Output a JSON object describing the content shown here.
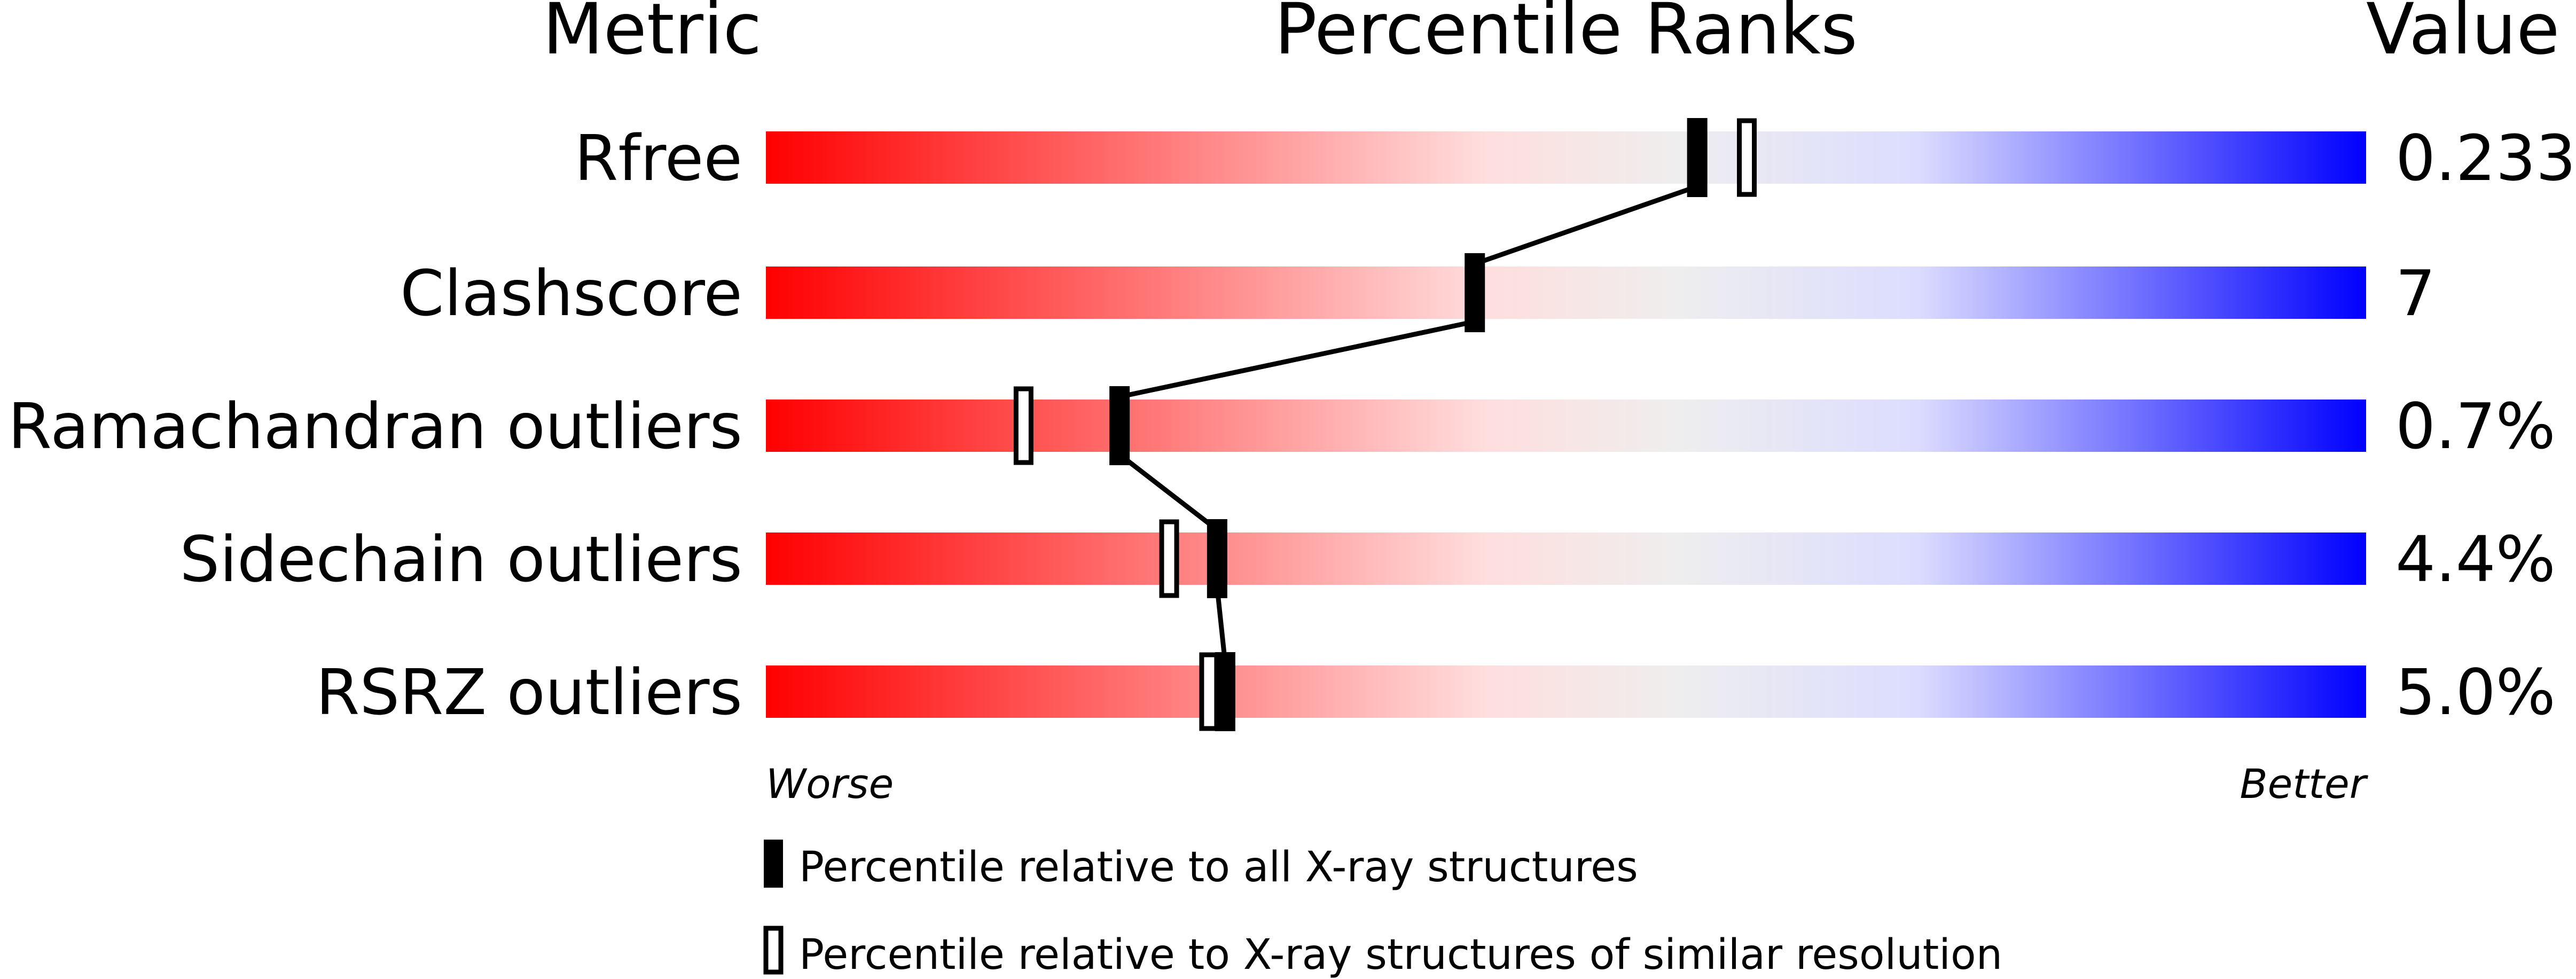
{
  "chart_data": {
    "type": "percentile-slider",
    "headers": {
      "metric": "Metric",
      "ranks": "Percentile Ranks",
      "value": "Value"
    },
    "xlim": [
      0,
      100
    ],
    "axis_labels": {
      "left": "Worse",
      "right": "Better"
    },
    "gradient_colors": [
      "#ff0000",
      "#ffdede",
      "#eeeeee",
      "#dcdcff",
      "#0000ff"
    ],
    "rows": [
      {
        "metric": "Rfree",
        "value": "0.233",
        "percentile_all": 58.2,
        "percentile_similar": 61.3
      },
      {
        "metric": "Clashscore",
        "value": "7",
        "percentile_all": 44.3,
        "percentile_similar": null
      },
      {
        "metric": "Ramachandran outliers",
        "value": "0.7%",
        "percentile_all": 22.1,
        "percentile_similar": 16.1
      },
      {
        "metric": "Sidechain outliers",
        "value": "4.4%",
        "percentile_all": 28.2,
        "percentile_similar": 25.2
      },
      {
        "metric": "RSRZ outliers",
        "value": "5.0%",
        "percentile_all": 28.7,
        "percentile_similar": 27.7
      }
    ],
    "legend": [
      {
        "marker": "filled",
        "label": "Percentile relative to all X-ray structures"
      },
      {
        "marker": "open",
        "label": "Percentile relative to X-ray structures of similar resolution"
      }
    ]
  }
}
